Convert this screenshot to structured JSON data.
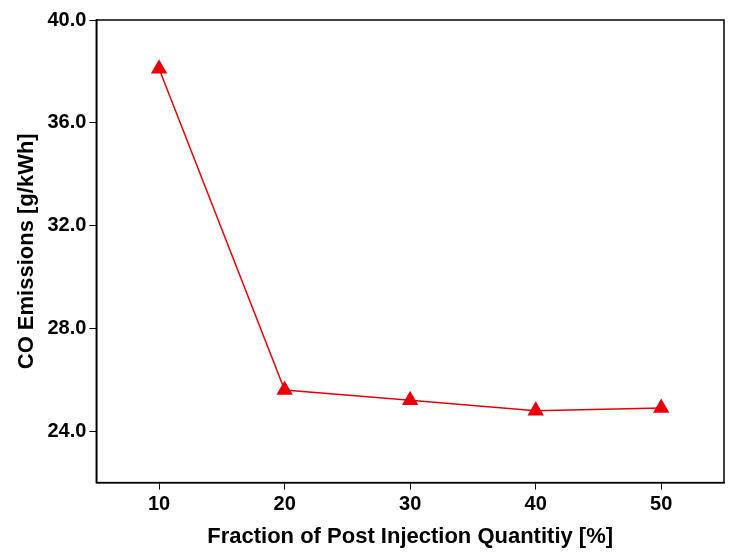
{
  "chart_data": {
    "type": "line",
    "x_label": "Fraction of Post Injection Quantitiy [%]",
    "y_label": "CO Emissions [g/kWh]",
    "x": [
      10,
      20,
      30,
      40,
      50
    ],
    "values": [
      38.1,
      25.6,
      25.2,
      24.8,
      24.9
    ],
    "color": "#e8000b",
    "marker": "triangle",
    "line_style": "solid",
    "xlim": [
      5,
      55
    ],
    "xticks": [
      10,
      20,
      30,
      40,
      50
    ],
    "ylim": [
      22,
      40
    ],
    "yticks": [
      {
        "value": 24,
        "label": "24.0"
      },
      {
        "value": 28,
        "label": "28.0"
      },
      {
        "value": 32,
        "label": "32.0"
      },
      {
        "value": 36,
        "label": "36.0"
      },
      {
        "value": 40,
        "label": "40.0"
      }
    ],
    "grid": false
  }
}
